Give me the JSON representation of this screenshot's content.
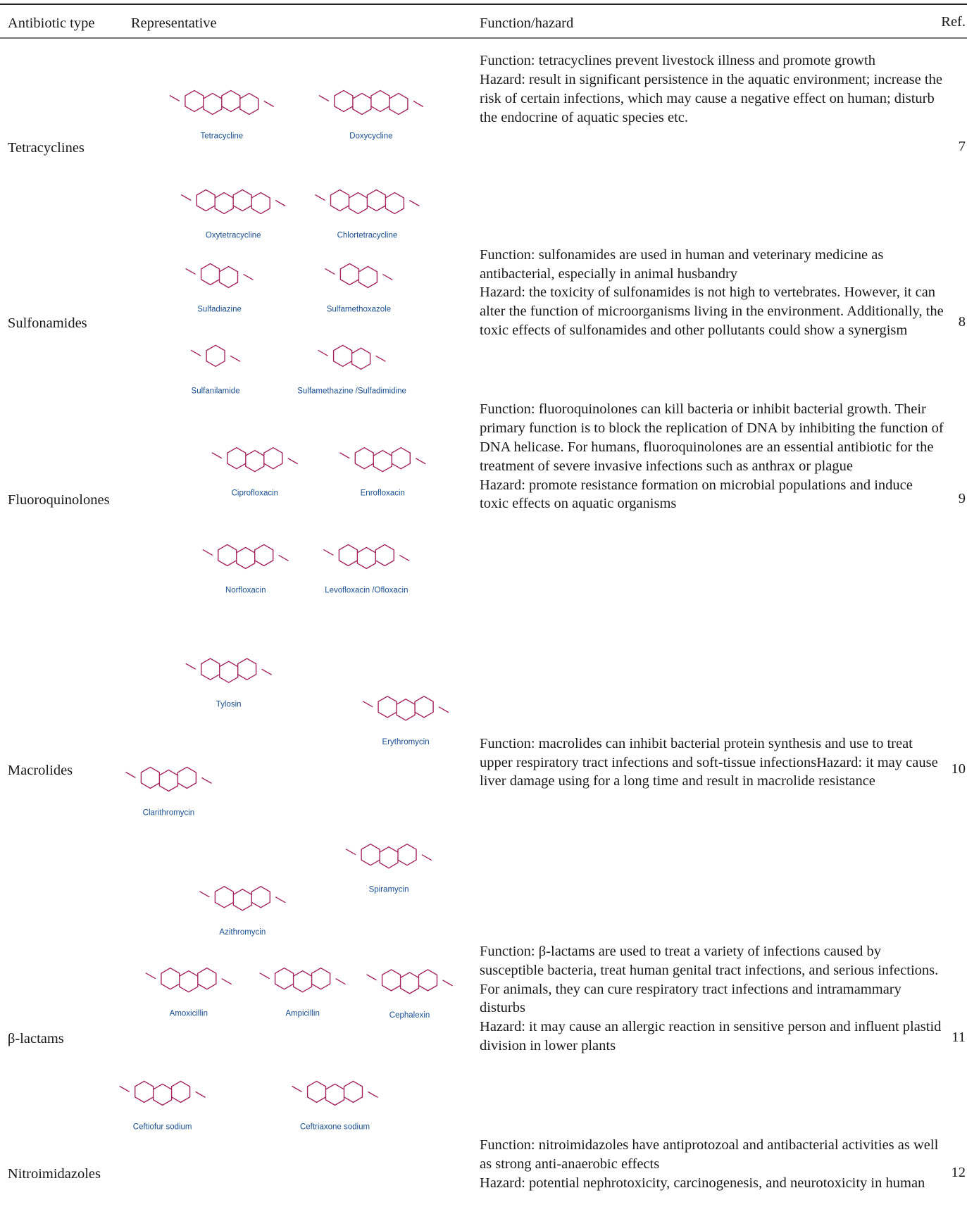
{
  "header": {
    "columns": [
      "Antibiotic type",
      "Representative",
      "Function/hazard",
      "Ref."
    ]
  },
  "rows": [
    {
      "type": "Tetracyclines",
      "compounds": [
        "Tetracycline",
        "Doxycycline",
        "Oxytetracycline",
        "Chlortetracycline"
      ],
      "text": [
        "Function: tetracyclines prevent livestock illness and promote growth",
        "Hazard: result in significant persistence in the aquatic environment; increase the risk of certain infections, which may cause a negative effect on human; disturb the endocrine of aquatic species etc."
      ],
      "ref": 7
    },
    {
      "type": "Sulfonamides",
      "compounds": [
        "Sulfadiazine",
        "Sulfamethoxazole",
        "Sulfanilamide",
        "Sulfamethazine /Sulfadimidine"
      ],
      "text": [
        "Function: sulfonamides are used in human and veterinary medicine as antibacterial, especially in animal husbandry",
        "Hazard: the toxicity of sulfonamides is not high to vertebrates. However, it can alter the function of microorganisms living in the environment. Additionally, the toxic effects of sulfonamides and other pollutants could show a synergism"
      ],
      "ref": 8
    },
    {
      "type": "Fluoroquinolones",
      "compounds": [
        "Ciprofloxacin",
        "Enrofloxacin",
        "Norfloxacin",
        "Levofloxacin /Ofloxacin"
      ],
      "text": [
        "Function: fluoroquinolones can kill bacteria or inhibit bacterial growth. Their primary function is to block the replication of DNA by inhibiting the function of DNA helicase. For humans, fluoroquinolones are an essential antibiotic for the treatment of severe invasive infections such as anthrax or plague",
        "Hazard: promote resistance formation on microbial populations and induce toxic effects on aquatic organisms"
      ],
      "ref": 9
    },
    {
      "type": "Macrolides",
      "compounds": [
        "Tylosin",
        "Erythromycin",
        "Clarithromycin",
        "Spiramycin",
        "Azithromycin"
      ],
      "text": [
        "Function: macrolides can inhibit bacterial protein synthesis and use to treat upper respiratory tract infections and soft-tissue infectionsHazard: it may cause liver damage using for a long time and result in macrolide resistance"
      ],
      "ref": 10
    },
    {
      "type": "β-lactams",
      "compounds": [
        "Amoxicillin",
        "Ampicillin",
        "Cephalexin",
        "Ceftiofur sodium",
        "Ceftriaxone sodium"
      ],
      "text": [
        "Function: β-lactams are used to treat a variety of infections caused by susceptible bacteria, treat human genital tract infections, and serious infections. For animals, they can cure respiratory tract infections and intramammary disturbs",
        "Hazard: it may cause an allergic reaction in sensitive person and influent plastid division in lower plants"
      ],
      "ref": 11
    },
    {
      "type": "Nitroimidazoles",
      "compounds": [],
      "text": [
        "Function: nitroimidazoles have antiprotozoal and antibacterial activities as well as strong anti-anaerobic effects",
        "Hazard: potential nephrotoxicity, carcinogenesis, and neurotoxicity in human"
      ],
      "ref": 12
    }
  ]
}
